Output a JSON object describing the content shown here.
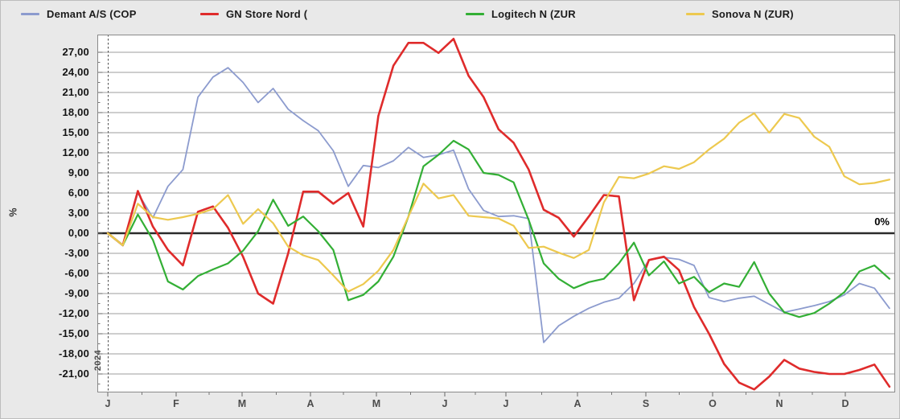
{
  "legend": {
    "items": [
      {
        "label": "Demant A/S (COP",
        "color": "#8c9bce"
      },
      {
        "label": "GN Store Nord (",
        "color": "#df2b2b"
      },
      {
        "label": "Logitech N (ZUR",
        "color": "#33af35"
      },
      {
        "label": "Sonova N (ZUR)",
        "color": "#edc94f"
      }
    ]
  },
  "y_axis": {
    "unit_label": "%",
    "ticks": [
      {
        "label": "27,00",
        "value": 27
      },
      {
        "label": "24,00",
        "value": 24
      },
      {
        "label": "21,00",
        "value": 21
      },
      {
        "label": "18,00",
        "value": 18
      },
      {
        "label": "15,00",
        "value": 15
      },
      {
        "label": "12,00",
        "value": 12
      },
      {
        "label": "9,00",
        "value": 9
      },
      {
        "label": "6,00",
        "value": 6
      },
      {
        "label": "3,00",
        "value": 3
      },
      {
        "label": "0,00",
        "value": 0
      },
      {
        "label": "-3,00",
        "value": -3
      },
      {
        "label": "-6,00",
        "value": -6
      },
      {
        "label": "-9,00",
        "value": -9
      },
      {
        "label": "-12,00",
        "value": -12
      },
      {
        "label": "-15,00",
        "value": -15
      },
      {
        "label": "-18,00",
        "value": -18
      },
      {
        "label": "-21,00",
        "value": -21
      }
    ]
  },
  "x_axis": {
    "month_labels": [
      "J",
      "F",
      "M",
      "A",
      "M",
      "J",
      "J",
      "A",
      "S",
      "O",
      "N",
      "D"
    ],
    "year_label": "2024"
  },
  "zero_line_label": "0%",
  "chart_data": {
    "type": "line",
    "title": "",
    "xlabel": "",
    "ylabel": "%",
    "x_unit": "weeks of 2024, January through December",
    "ylim": [
      -24.5,
      29.8
    ],
    "y_tick_step": 3,
    "grid": "horizontal",
    "legend_position": "top",
    "zero_line": true,
    "series": [
      {
        "name": "Demant A/S (COP",
        "color": "#8c9bce",
        "values": [
          0.0,
          -1.8,
          6.0,
          2.3,
          7.0,
          9.5,
          20.3,
          23.3,
          24.7,
          22.5,
          19.5,
          21.6,
          18.5,
          16.8,
          15.3,
          12.3,
          7.0,
          10.1,
          9.8,
          10.8,
          12.8,
          11.3,
          11.7,
          12.4,
          6.6,
          3.4,
          2.5,
          2.6,
          2.2,
          -16.3,
          -13.8,
          -12.4,
          -11.2,
          -10.3,
          -9.7,
          -7.5,
          -4.0,
          -3.6,
          -3.9,
          -4.8,
          -9.6,
          -10.2,
          -9.7,
          -9.4,
          -10.6,
          -11.8,
          -11.3,
          -10.8,
          -10.2,
          -9.2,
          -7.5,
          -8.2,
          -11.2
        ]
      },
      {
        "name": "GN Store Nord (",
        "color": "#df2b2b",
        "values": [
          0.0,
          -1.8,
          6.3,
          1.0,
          -2.5,
          -4.8,
          3.2,
          4.0,
          0.8,
          -3.5,
          -9.0,
          -10.5,
          -3.0,
          6.2,
          6.2,
          4.4,
          6.0,
          1.0,
          17.5,
          25.0,
          28.4,
          28.4,
          26.9,
          29.0,
          23.5,
          20.3,
          15.5,
          13.5,
          9.5,
          3.5,
          2.3,
          -0.5,
          2.5,
          5.7,
          5.5,
          -10.0,
          -4.0,
          -3.5,
          -5.5,
          -11.0,
          -15.0,
          -19.5,
          -22.3,
          -23.3,
          -21.4,
          -18.9,
          -20.2,
          -20.7,
          -21.0,
          -21.0,
          -20.4,
          -19.6,
          -22.9
        ]
      },
      {
        "name": "Logitech N (ZUR",
        "color": "#33af35",
        "values": [
          0.0,
          -1.8,
          2.8,
          -1.0,
          -7.2,
          -8.4,
          -6.4,
          -5.4,
          -4.5,
          -2.6,
          0.3,
          5.0,
          1.1,
          2.5,
          0.3,
          -2.5,
          -10.0,
          -9.2,
          -7.2,
          -3.5,
          2.5,
          10.0,
          11.7,
          13.8,
          12.5,
          9.0,
          8.7,
          7.6,
          2.0,
          -4.5,
          -6.8,
          -8.2,
          -7.3,
          -6.8,
          -4.5,
          -1.4,
          -6.3,
          -4.2,
          -7.5,
          -6.5,
          -8.8,
          -7.5,
          -8.0,
          -4.3,
          -9.0,
          -11.8,
          -12.5,
          -11.9,
          -10.5,
          -8.8,
          -5.7,
          -4.8,
          -6.8
        ]
      },
      {
        "name": "Sonova N (ZUR)",
        "color": "#edc94f",
        "values": [
          0.0,
          -1.8,
          4.4,
          2.4,
          2.0,
          2.4,
          2.9,
          3.6,
          5.7,
          1.4,
          3.6,
          1.5,
          -2.0,
          -3.3,
          -4.0,
          -6.3,
          -8.7,
          -7.6,
          -5.6,
          -2.5,
          2.5,
          7.4,
          5.2,
          5.7,
          2.6,
          2.4,
          2.2,
          1.1,
          -2.2,
          -2.0,
          -2.9,
          -3.7,
          -2.5,
          4.6,
          8.4,
          8.2,
          8.9,
          10.0,
          9.6,
          10.6,
          12.5,
          14.1,
          16.5,
          17.9,
          15.0,
          17.8,
          17.2,
          14.4,
          12.9,
          8.5,
          7.3,
          7.5,
          8.0
        ]
      }
    ]
  }
}
